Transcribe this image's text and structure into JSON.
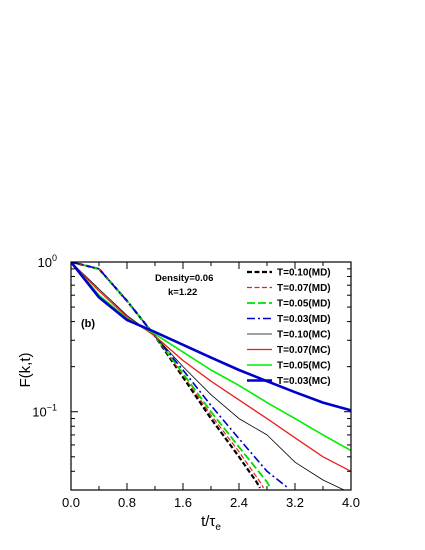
{
  "chart_data": {
    "type": "line",
    "xlabel": "t/τe",
    "xlabel_main": "t/τ",
    "xlabel_sub": "e",
    "ylabel": "F(k,t)",
    "y_scale": "log",
    "xlim": [
      0.0,
      4.0
    ],
    "ylim": [
      0.03,
      1.0
    ],
    "x_ticks": [
      "0.0",
      "0.8",
      "1.6",
      "2.4",
      "3.2",
      "4.0"
    ],
    "y_tick_labels": [
      {
        "base": "10",
        "exp": "0"
      },
      {
        "base": "10",
        "exp": "−1"
      }
    ],
    "annotations": {
      "density": "Density=0.06",
      "k": "k=1.22",
      "panel": "(b)"
    },
    "legend_position": "top-right",
    "series": [
      {
        "name": "T=0.10(MD)",
        "color": "#000000",
        "style": "dashed",
        "width": 2.2,
        "points": [
          [
            0,
            1.0
          ],
          [
            0.4,
            0.9
          ],
          [
            0.8,
            0.55
          ],
          [
            1.2,
            0.32
          ],
          [
            1.6,
            0.17
          ],
          [
            2.0,
            0.09
          ],
          [
            2.4,
            0.05
          ],
          [
            2.65,
            0.034
          ],
          [
            2.7,
            0.031
          ]
        ]
      },
      {
        "name": "T=0.07(MD)",
        "color": "#e8201c",
        "style": "dashed",
        "width": 1.2,
        "points": [
          [
            0,
            1.0
          ],
          [
            0.4,
            0.9
          ],
          [
            0.8,
            0.55
          ],
          [
            1.2,
            0.32
          ],
          [
            1.6,
            0.175
          ],
          [
            2.0,
            0.095
          ],
          [
            2.4,
            0.054
          ],
          [
            2.7,
            0.034
          ],
          [
            2.75,
            0.031
          ]
        ]
      },
      {
        "name": "T=0.05(MD)",
        "color": "#00dd00",
        "style": "longdash",
        "width": 1.8,
        "points": [
          [
            0,
            1.0
          ],
          [
            0.4,
            0.9
          ],
          [
            0.8,
            0.55
          ],
          [
            1.2,
            0.32
          ],
          [
            1.6,
            0.18
          ],
          [
            2.0,
            0.1
          ],
          [
            2.4,
            0.058
          ],
          [
            2.8,
            0.034
          ],
          [
            2.85,
            0.031
          ]
        ]
      },
      {
        "name": "T=0.03(MD)",
        "color": "#0000cc",
        "style": "dashdot",
        "width": 1.6,
        "points": [
          [
            0,
            1.0
          ],
          [
            0.4,
            0.9
          ],
          [
            0.8,
            0.55
          ],
          [
            1.2,
            0.32
          ],
          [
            1.6,
            0.19
          ],
          [
            2.0,
            0.11
          ],
          [
            2.4,
            0.066
          ],
          [
            2.8,
            0.04
          ],
          [
            3.1,
            0.031
          ]
        ]
      },
      {
        "name": "T=0.10(MC)",
        "color": "#000000",
        "style": "solid",
        "width": 0.8,
        "points": [
          [
            0,
            1.0
          ],
          [
            0.4,
            0.66
          ],
          [
            0.8,
            0.44
          ],
          [
            1.2,
            0.32
          ],
          [
            1.6,
            0.2
          ],
          [
            2.0,
            0.13
          ],
          [
            2.4,
            0.09
          ],
          [
            2.8,
            0.07
          ],
          [
            3.2,
            0.046
          ],
          [
            3.6,
            0.035
          ],
          [
            3.9,
            0.03
          ]
        ]
      },
      {
        "name": "T=0.07(MC)",
        "color": "#e8201c",
        "style": "solid",
        "width": 1.3,
        "points": [
          [
            0,
            1.0
          ],
          [
            0.4,
            0.64
          ],
          [
            0.8,
            0.43
          ],
          [
            1.2,
            0.32
          ],
          [
            1.6,
            0.22
          ],
          [
            2.0,
            0.16
          ],
          [
            2.4,
            0.12
          ],
          [
            2.8,
            0.09
          ],
          [
            3.2,
            0.067
          ],
          [
            3.6,
            0.05
          ],
          [
            4.0,
            0.04
          ]
        ]
      },
      {
        "name": "T=0.05(MC)",
        "color": "#00ee00",
        "style": "solid",
        "width": 1.6,
        "points": [
          [
            0,
            1.0
          ],
          [
            0.4,
            0.6
          ],
          [
            0.8,
            0.42
          ],
          [
            1.2,
            0.33
          ],
          [
            1.6,
            0.25
          ],
          [
            2.0,
            0.19
          ],
          [
            2.4,
            0.15
          ],
          [
            2.8,
            0.115
          ],
          [
            3.2,
            0.09
          ],
          [
            3.6,
            0.07
          ],
          [
            4.0,
            0.055
          ]
        ]
      },
      {
        "name": "T=0.03(MC)",
        "color": "#0000cc",
        "style": "solid",
        "width": 2.6,
        "points": [
          [
            0,
            1.0
          ],
          [
            0.4,
            0.58
          ],
          [
            0.8,
            0.41
          ],
          [
            1.2,
            0.34
          ],
          [
            1.6,
            0.28
          ],
          [
            2.0,
            0.23
          ],
          [
            2.4,
            0.19
          ],
          [
            2.8,
            0.16
          ],
          [
            3.2,
            0.135
          ],
          [
            3.6,
            0.115
          ],
          [
            4.0,
            0.102
          ]
        ]
      }
    ]
  }
}
